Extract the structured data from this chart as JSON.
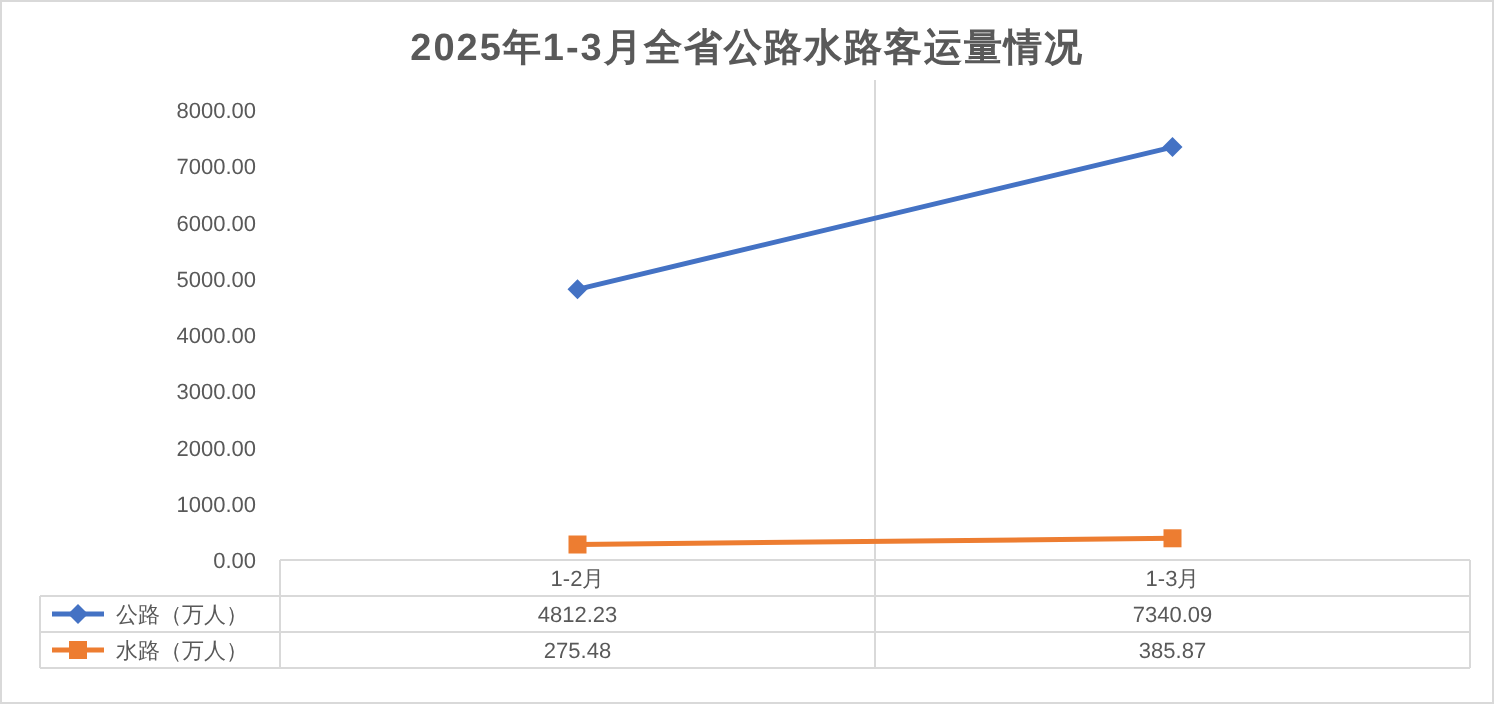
{
  "chart_data": {
    "type": "line",
    "title": "2025年1-3月全省公路水路客运量情况",
    "categories": [
      "1-2月",
      "1-3月"
    ],
    "series": [
      {
        "name": "公路（万人）",
        "color": "#4472c4",
        "marker": "diamond",
        "values": [
          4812.23,
          7340.09
        ]
      },
      {
        "name": "水路（万人）",
        "color": "#ed7d31",
        "marker": "square",
        "values": [
          275.48,
          385.87
        ]
      }
    ],
    "ylim": [
      0,
      8000
    ],
    "yticks": [
      {
        "value": 0,
        "label": "0.00"
      },
      {
        "value": 1000,
        "label": "1000.00"
      },
      {
        "value": 2000,
        "label": "2000.00"
      },
      {
        "value": 3000,
        "label": "3000.00"
      },
      {
        "value": 4000,
        "label": "4000.00"
      },
      {
        "value": 5000,
        "label": "5000.00"
      },
      {
        "value": 6000,
        "label": "6000.00"
      },
      {
        "value": 7000,
        "label": "7000.00"
      },
      {
        "value": 8000,
        "label": "8000.00"
      }
    ],
    "grid": "x",
    "legend": "bottom",
    "data_labels": true
  }
}
